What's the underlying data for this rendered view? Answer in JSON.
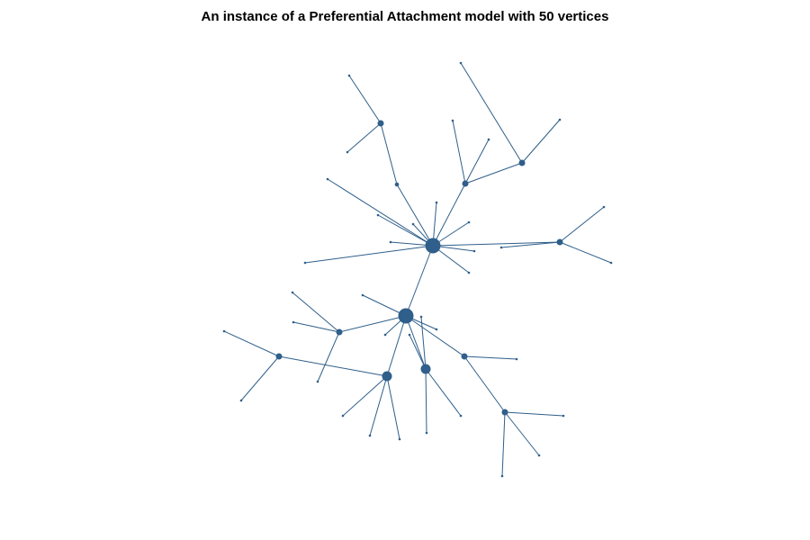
{
  "title": "An instance of a Preferential Attachment model with 50 vertices",
  "colors": {
    "vertex": "#2f5f8a",
    "edge": "#2f5f8a",
    "background": "#ffffff"
  },
  "graph": {
    "vertex_count": 50,
    "edges": [
      [
        0,
        1
      ],
      [
        0,
        2
      ],
      [
        0,
        3
      ],
      [
        0,
        4
      ],
      [
        0,
        5
      ],
      [
        0,
        6
      ],
      [
        0,
        7
      ],
      [
        0,
        8
      ],
      [
        0,
        9
      ],
      [
        0,
        10
      ],
      [
        0,
        11
      ],
      [
        0,
        12
      ],
      [
        0,
        13
      ],
      [
        2,
        14
      ],
      [
        14,
        15
      ],
      [
        3,
        16
      ],
      [
        3,
        17
      ],
      [
        3,
        18
      ],
      [
        18,
        19
      ],
      [
        18,
        20
      ],
      [
        4,
        21
      ],
      [
        4,
        22
      ],
      [
        4,
        23
      ],
      [
        1,
        24
      ],
      [
        1,
        25
      ],
      [
        1,
        26
      ],
      [
        1,
        27
      ],
      [
        1,
        28
      ],
      [
        1,
        29
      ],
      [
        1,
        30
      ],
      [
        27,
        31
      ],
      [
        27,
        32
      ],
      [
        27,
        33
      ],
      [
        28,
        34
      ],
      [
        28,
        35
      ],
      [
        28,
        36
      ],
      [
        28,
        37
      ],
      [
        37,
        38
      ],
      [
        37,
        39
      ],
      [
        29,
        40
      ],
      [
        29,
        41
      ],
      [
        29,
        42
      ],
      [
        29,
        43
      ],
      [
        30,
        44
      ],
      [
        30,
        45
      ],
      [
        45,
        46
      ],
      [
        45,
        47
      ],
      [
        45,
        48
      ],
      [
        14,
        49
      ]
    ]
  }
}
